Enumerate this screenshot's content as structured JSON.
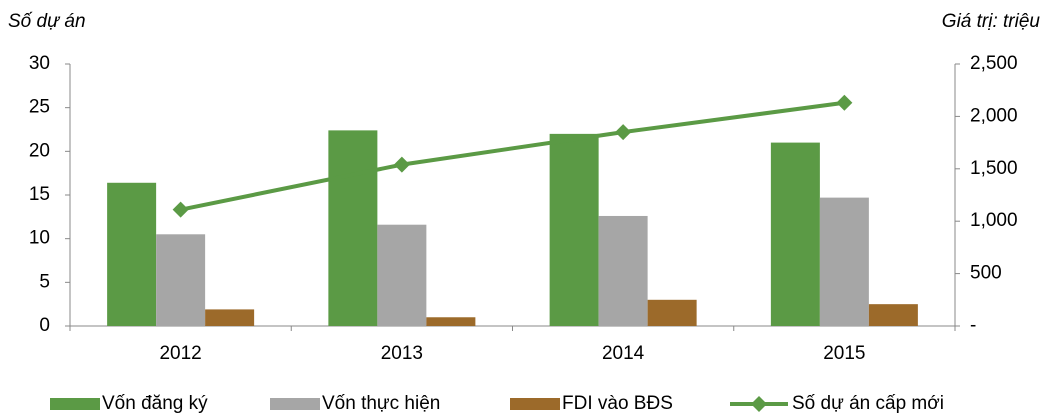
{
  "chart_data": {
    "type": "bar",
    "y_label": "Số dự án",
    "y2_label": "Giá trị: triệu",
    "categories": [
      "2012",
      "2013",
      "2014",
      "2015"
    ],
    "series": [
      {
        "name": "Vốn đăng ký",
        "color": "#5b9a45",
        "values": [
          16.4,
          22.4,
          22.0,
          21.0
        ]
      },
      {
        "name": "Vốn thực hiện",
        "color": "#a6a6a6",
        "values": [
          10.5,
          11.6,
          12.6,
          14.7
        ]
      },
      {
        "name": "FDI vào BĐS",
        "color": "#9c6a2a",
        "values": [
          1.9,
          1.0,
          3.0,
          2.5
        ]
      },
      {
        "name": "Số dự án cấp mới",
        "color": "#5b9a45",
        "type": "line",
        "axis": "y2",
        "values": [
          1110,
          1540,
          1850,
          2130
        ]
      }
    ],
    "ylim": [
      0,
      30
    ],
    "yticks": [
      0,
      5,
      10,
      15,
      20,
      25,
      30
    ],
    "y2lim": [
      0,
      2500
    ],
    "y2ticks": [
      {
        "value": 0,
        "label": "-"
      },
      500,
      {
        "value": 1000,
        "label": "1,000"
      },
      {
        "value": 1500,
        "label": "1,500"
      },
      {
        "value": 2000,
        "label": "2,000"
      },
      {
        "value": 2500,
        "label": "2,500"
      }
    ],
    "legend": "bottom"
  }
}
